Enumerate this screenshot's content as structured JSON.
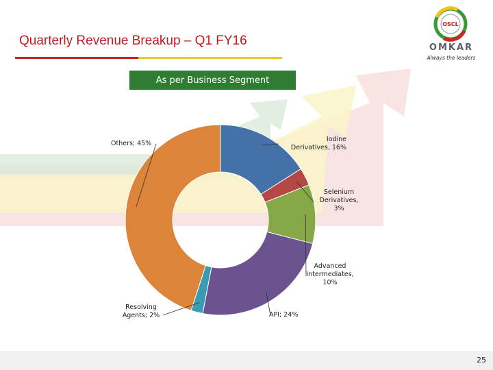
{
  "slide": {
    "title": "Quarterly Revenue Breakup – Q1 FY16",
    "segment_heading": "As per Business Segment",
    "page_number": "25"
  },
  "logo": {
    "brand": "OMKAR",
    "tagline": "Always the leaders",
    "emblem_text": "OSCL"
  },
  "chart_data": {
    "type": "pie",
    "variant": "doughnut",
    "categories": [
      "Iodine Derivatives",
      "Selenium Derivatives",
      "Advanced Intermediates",
      "API",
      "Resolving Agents",
      "Others"
    ],
    "values": [
      16,
      3,
      10,
      24,
      2,
      45
    ],
    "colors": [
      "#4472a8",
      "#b54745",
      "#86a846",
      "#6b5390",
      "#3a9bb2",
      "#dc843a"
    ],
    "labels": [
      {
        "lines": [
          "Iodine",
          "Derivatives, 16%"
        ]
      },
      {
        "lines": [
          "Selenium",
          "Derivatives, 3%"
        ]
      },
      {
        "lines": [
          "Advanced",
          "Intermediates,",
          "10%"
        ]
      },
      {
        "lines": [
          "API; 24%"
        ]
      },
      {
        "lines": [
          "Resolving",
          "Agents; 2%"
        ]
      },
      {
        "lines": [
          "Others; 45%"
        ]
      }
    ]
  }
}
